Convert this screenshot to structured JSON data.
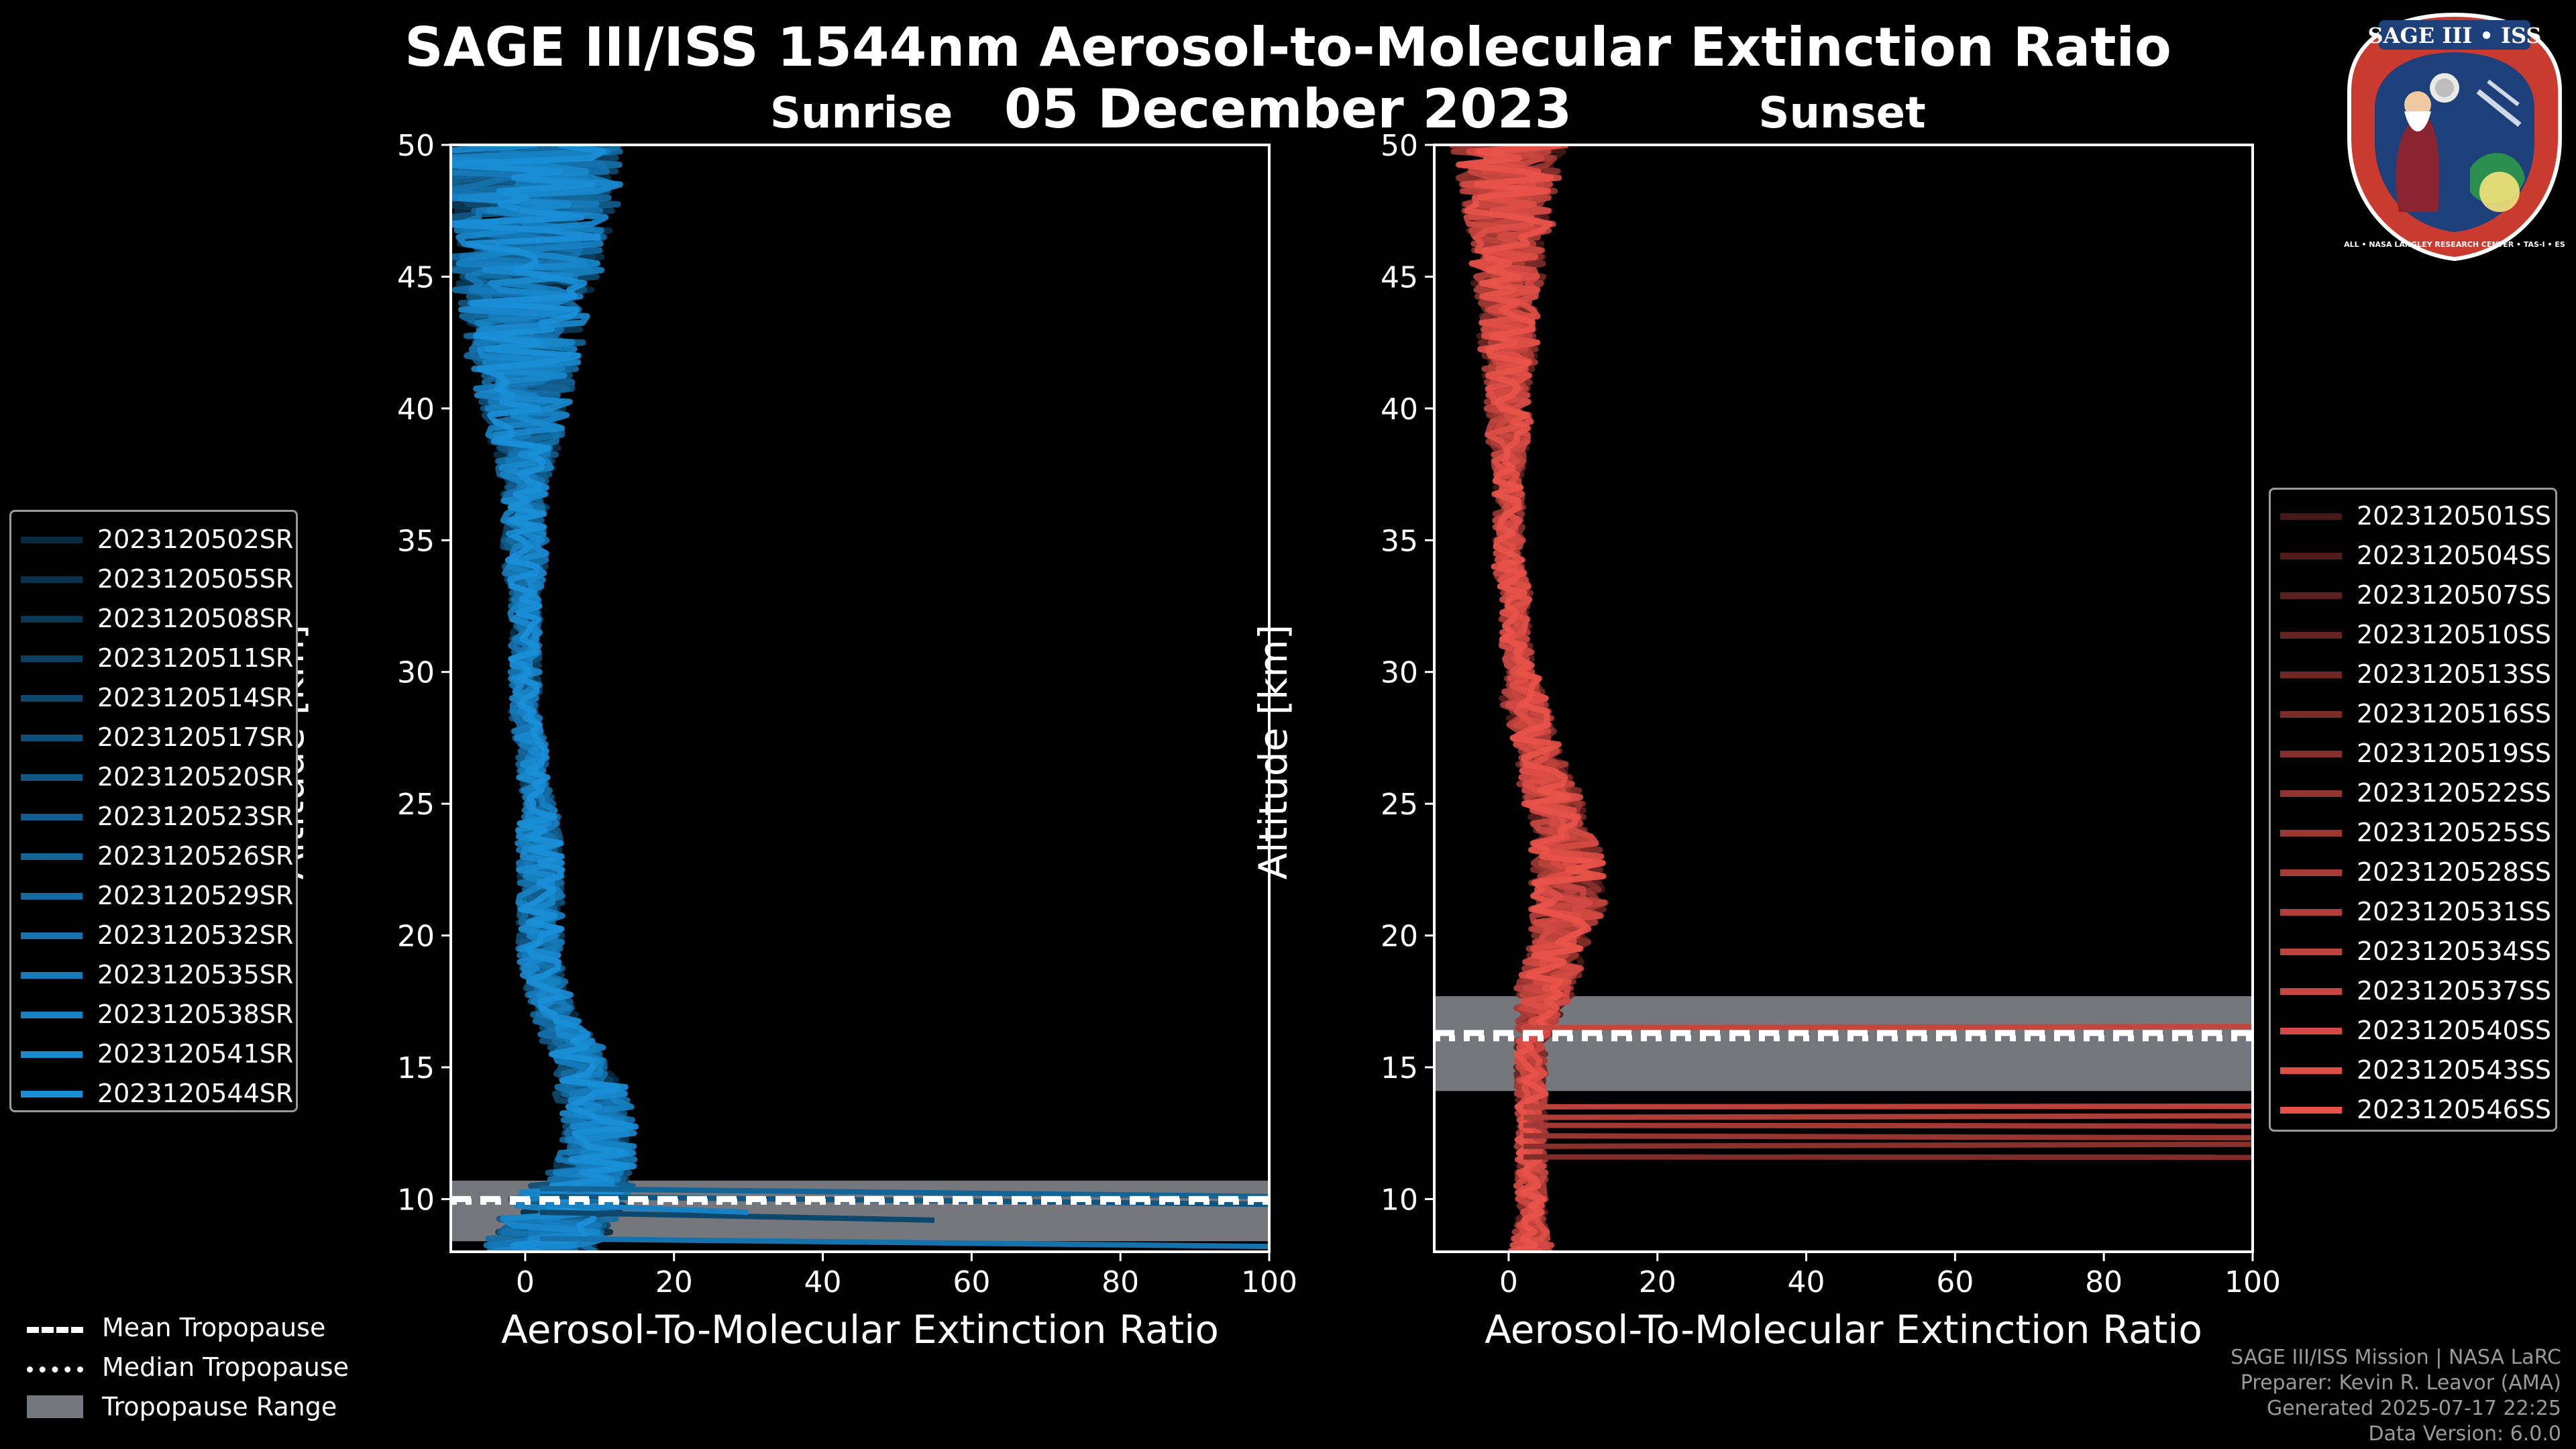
{
  "header": {
    "title_line1": "SAGE III/ISS 1544nm Aerosol-to-Molecular Extinction Ratio",
    "title_line2": "05 December 2023"
  },
  "panels": {
    "sunrise_title": "Sunrise",
    "sunset_title": "Sunset"
  },
  "logo": {
    "text": "SAGE III • ISS",
    "ring_text": "BALL • NASA LANGLEY RESEARCH CENTER • TAS-I • ESA"
  },
  "colors": {
    "sunrise": "#1a8fd8",
    "sunset": "#e8524a",
    "tropo_fill": "#75777c"
  },
  "legend_sunrise": [
    "2023120502SR",
    "2023120505SR",
    "2023120508SR",
    "2023120511SR",
    "2023120514SR",
    "2023120517SR",
    "2023120520SR",
    "2023120523SR",
    "2023120526SR",
    "2023120529SR",
    "2023120532SR",
    "2023120535SR",
    "2023120538SR",
    "2023120541SR",
    "2023120544SR"
  ],
  "legend_sunset": [
    "2023120501SS",
    "2023120504SS",
    "2023120507SS",
    "2023120510SS",
    "2023120513SS",
    "2023120516SS",
    "2023120519SS",
    "2023120522SS",
    "2023120525SS",
    "2023120528SS",
    "2023120531SS",
    "2023120534SS",
    "2023120537SS",
    "2023120540SS",
    "2023120543SS",
    "2023120546SS"
  ],
  "legend_tropopause": {
    "mean": "Mean Tropopause",
    "median": "Median Tropopause",
    "range": "Tropopause Range"
  },
  "credits": [
    "SAGE III/ISS Mission | NASA LaRC",
    "Preparer: Kevin R. Leavor (AMA)",
    "Generated 2025-07-17 22:25",
    "Data Version: 6.0.0"
  ],
  "chart_data": [
    {
      "type": "line",
      "title": "Sunrise",
      "xlabel": "Aerosol-To-Molecular Extinction Ratio",
      "ylabel": "Altitude [km]",
      "xlim": [
        -10,
        100
      ],
      "ylim": [
        8,
        50
      ],
      "xticks": [
        0,
        20,
        40,
        60,
        80,
        100
      ],
      "yticks": [
        10,
        15,
        20,
        25,
        30,
        35,
        40,
        45,
        50
      ],
      "tropopause": {
        "min": 8.4,
        "max": 10.7,
        "mean": 10.0,
        "median": 9.9
      },
      "profile_altitude_km": [
        8,
        9,
        10,
        11,
        12,
        13,
        14,
        15,
        16,
        17,
        18,
        19,
        20,
        21,
        22,
        23,
        24,
        25,
        26,
        27,
        28,
        29,
        30,
        31,
        32,
        33,
        34,
        35,
        36,
        37,
        38,
        39,
        40,
        41,
        42,
        43,
        44,
        45,
        46,
        47,
        48,
        49,
        50
      ],
      "median_profile_ratio": [
        2,
        4,
        6,
        9,
        10,
        10,
        9,
        8,
        6,
        4,
        3,
        2,
        2,
        2,
        2,
        2,
        2,
        2,
        1,
        1,
        0,
        0,
        0,
        0,
        0,
        0,
        0,
        0,
        0,
        0,
        0,
        0,
        0,
        0,
        0,
        0,
        0,
        0,
        0,
        0,
        0,
        0,
        0
      ],
      "spread_ratio": [
        8,
        8,
        8,
        6,
        5,
        5,
        5,
        4,
        4,
        3,
        3,
        3,
        3,
        3,
        3,
        3,
        3,
        2,
        2,
        2,
        2,
        2,
        2,
        2,
        2,
        2,
        3,
        3,
        3,
        3,
        4,
        5,
        6,
        7,
        8,
        8,
        9,
        10,
        11,
        12,
        13,
        14,
        15
      ]
    },
    {
      "type": "line",
      "title": "Sunset",
      "xlabel": "Aerosol-To-Molecular Extinction Ratio",
      "ylabel": "Altitude [km]",
      "xlim": [
        -10,
        100
      ],
      "ylim": [
        8,
        50
      ],
      "xticks": [
        0,
        20,
        40,
        60,
        80,
        100
      ],
      "yticks": [
        10,
        15,
        20,
        25,
        30,
        35,
        40,
        45,
        50
      ],
      "tropopause": {
        "min": 14.1,
        "max": 17.7,
        "mean": 16.3,
        "median": 16.1
      },
      "profile_altitude_km": [
        8,
        9,
        10,
        11,
        12,
        13,
        14,
        15,
        16,
        17,
        18,
        19,
        20,
        21,
        22,
        23,
        24,
        25,
        26,
        27,
        28,
        29,
        30,
        31,
        32,
        33,
        34,
        35,
        36,
        37,
        38,
        39,
        40,
        41,
        42,
        43,
        44,
        45,
        46,
        47,
        48,
        49,
        50
      ],
      "median_profile_ratio": [
        3,
        3,
        3,
        3,
        3,
        3,
        3,
        3,
        3,
        4,
        5,
        6,
        7,
        8,
        8,
        8,
        7,
        6,
        5,
        4,
        3,
        2,
        2,
        1,
        1,
        1,
        0,
        0,
        0,
        0,
        0,
        0,
        0,
        0,
        0,
        0,
        0,
        0,
        0,
        0,
        0,
        0,
        0
      ],
      "spread_ratio": [
        3,
        2,
        2,
        2,
        2,
        2,
        2,
        2,
        2,
        3,
        4,
        4,
        4,
        5,
        5,
        5,
        4,
        4,
        4,
        3,
        3,
        3,
        2,
        2,
        2,
        2,
        2,
        2,
        2,
        2,
        2,
        3,
        3,
        3,
        4,
        4,
        4,
        5,
        5,
        6,
        6,
        7,
        8
      ],
      "horizontal_artifacts_km": [
        11.6,
        12.0,
        12.4,
        12.8,
        13.1,
        13.5,
        16.5
      ]
    }
  ]
}
